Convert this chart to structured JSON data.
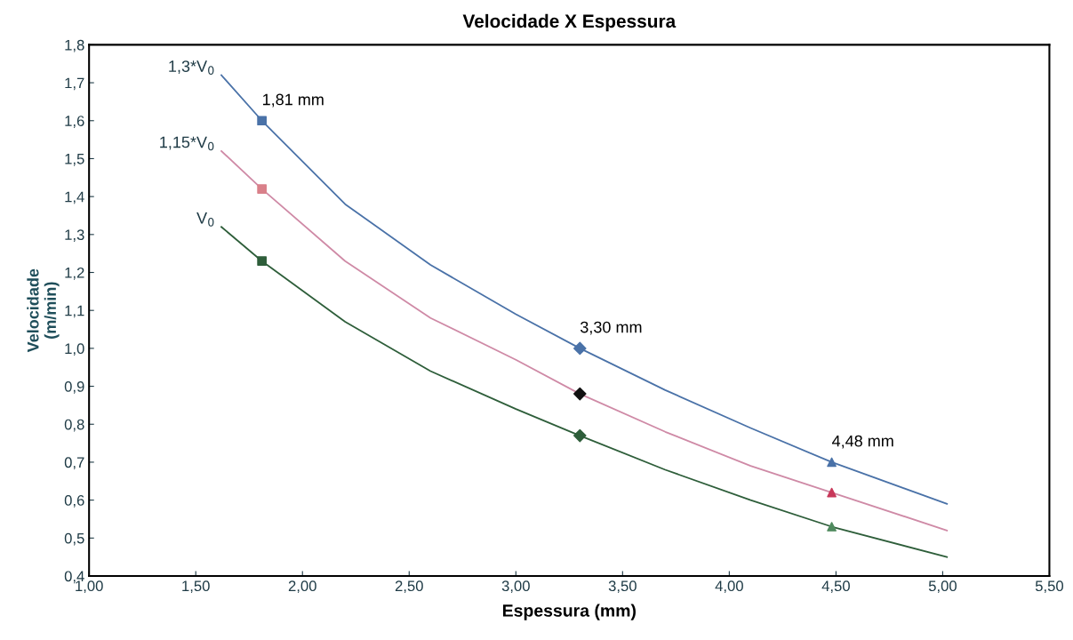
{
  "chart_data": {
    "type": "line",
    "title": "Velocidade X Espessura",
    "xlabel": "Espessura (mm)",
    "ylabel": "Velocidade\n(m/min)",
    "xlim": [
      1.0,
      5.5
    ],
    "ylim": [
      0.4,
      1.8
    ],
    "xticks": [
      {
        "value": 1.0,
        "label": "1,00"
      },
      {
        "value": 1.5,
        "label": "1,50"
      },
      {
        "value": 2.0,
        "label": "2,00"
      },
      {
        "value": 2.5,
        "label": "2,50"
      },
      {
        "value": 3.0,
        "label": "3,00"
      },
      {
        "value": 3.5,
        "label": "3,50"
      },
      {
        "value": 4.0,
        "label": "4,00"
      },
      {
        "value": 4.5,
        "label": "4,50"
      },
      {
        "value": 5.0,
        "label": "5,00"
      },
      {
        "value": 5.5,
        "label": "5,50"
      }
    ],
    "yticks": [
      {
        "value": 0.4,
        "label": "0,4"
      },
      {
        "value": 0.5,
        "label": "0,5"
      },
      {
        "value": 0.6,
        "label": "0,6"
      },
      {
        "value": 0.7,
        "label": "0,7"
      },
      {
        "value": 0.8,
        "label": "0,8"
      },
      {
        "value": 0.9,
        "label": "0,9"
      },
      {
        "value": 1.0,
        "label": "1,0"
      },
      {
        "value": 1.1,
        "label": "1,1"
      },
      {
        "value": 1.2,
        "label": "1,2"
      },
      {
        "value": 1.3,
        "label": "1,3"
      },
      {
        "value": 1.4,
        "label": "1,4"
      },
      {
        "value": 1.5,
        "label": "1,5"
      },
      {
        "value": 1.6,
        "label": "1,6"
      },
      {
        "value": 1.7,
        "label": "1,7"
      },
      {
        "value": 1.8,
        "label": "1,8"
      }
    ],
    "grid": false,
    "legend": false,
    "marker": "none",
    "line_style": "solid",
    "series": [
      {
        "name": "1,3*V$_{0}$",
        "color": "#4a72a8",
        "x": [
          1.62,
          1.81,
          2.2,
          2.6,
          3.0,
          3.3,
          3.7,
          4.1,
          4.48,
          5.02
        ],
        "values": [
          1.72,
          1.6,
          1.38,
          1.22,
          1.09,
          1.0,
          0.89,
          0.79,
          0.7,
          0.59
        ]
      },
      {
        "name": "1,15*V$_{0}$",
        "color": "#cf8aa6",
        "x": [
          1.62,
          1.81,
          2.2,
          2.6,
          3.0,
          3.3,
          3.7,
          4.1,
          4.48,
          5.02
        ],
        "values": [
          1.52,
          1.42,
          1.23,
          1.08,
          0.97,
          0.88,
          0.78,
          0.69,
          0.62,
          0.52
        ]
      },
      {
        "name": "V$_{0}$",
        "color": "#2e5e3a",
        "x": [
          1.62,
          1.81,
          2.2,
          2.6,
          3.0,
          3.3,
          3.7,
          4.1,
          4.48,
          5.02
        ],
        "values": [
          1.32,
          1.23,
          1.07,
          0.94,
          0.84,
          0.77,
          0.68,
          0.6,
          0.53,
          0.45
        ]
      },
      {
        "type": "scatter",
        "marker": "square",
        "x": [
          1.81,
          1.81,
          1.81
        ],
        "values": [
          1.6,
          1.42,
          1.23
        ],
        "colors": [
          "#4a72a8",
          "#d9808a",
          "#2e5e3a"
        ]
      },
      {
        "type": "scatter",
        "marker": "diamond",
        "x": [
          3.3,
          3.3,
          3.3
        ],
        "values": [
          1.0,
          0.88,
          0.77
        ],
        "colors": [
          "#4a72a8",
          "#111111",
          "#2e5e3a"
        ]
      },
      {
        "type": "scatter",
        "marker": "triangle",
        "x": [
          4.48,
          4.48,
          4.48
        ],
        "values": [
          0.7,
          0.62,
          0.53
        ],
        "colors": [
          "#4a72a8",
          "#c8385a",
          "#4f8a5e"
        ]
      }
    ],
    "annotations": [
      {
        "text": "1,81 mm",
        "x": 1.81,
        "y": 1.6
      },
      {
        "text": "3,30 mm",
        "x": 3.3,
        "y": 1.0
      },
      {
        "text": "4,48 mm",
        "x": 4.48,
        "y": 0.7
      }
    ]
  }
}
